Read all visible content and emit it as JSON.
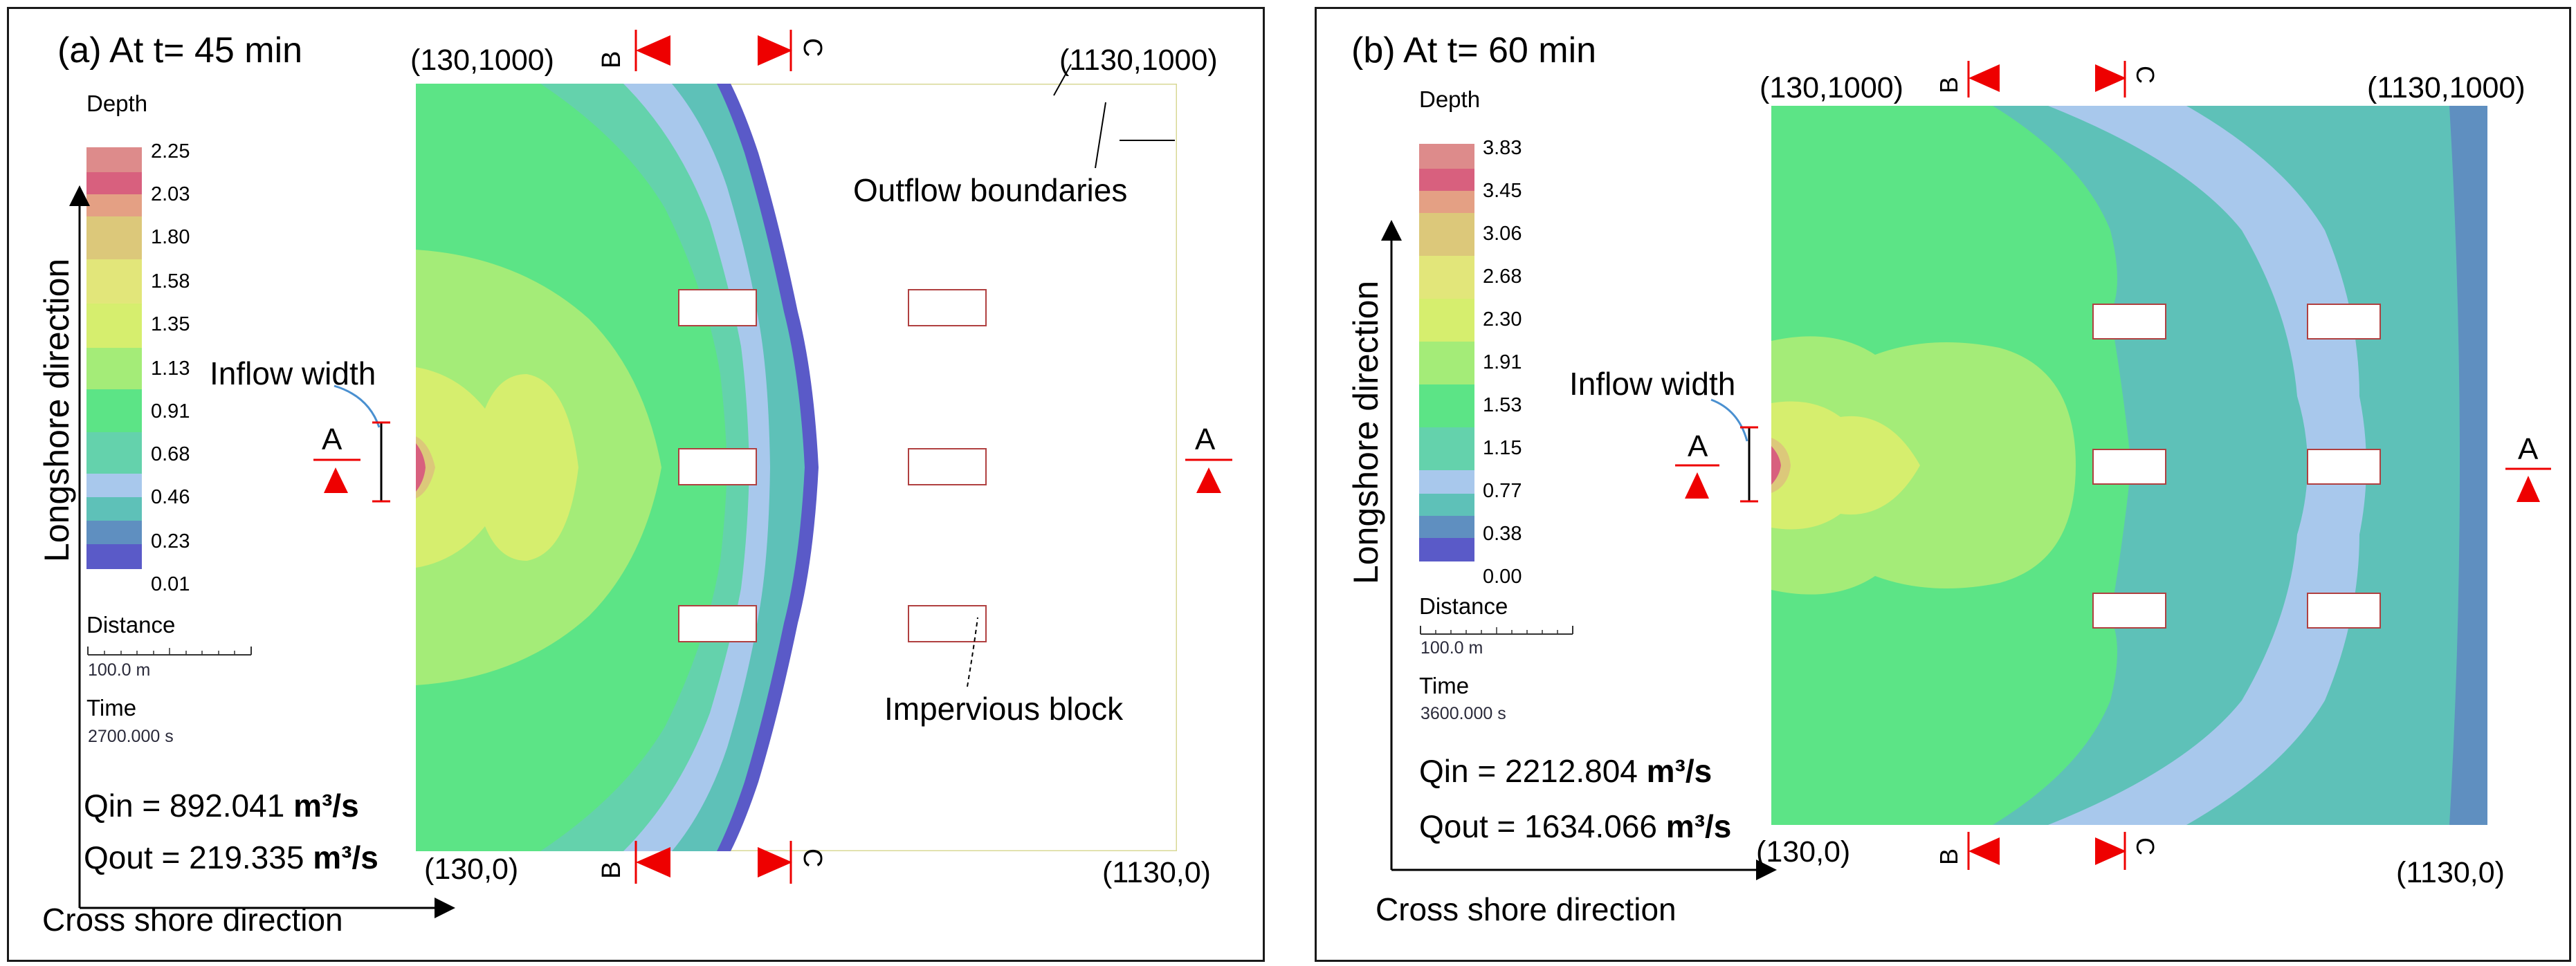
{
  "panel_a": {
    "title": "(a) At t= 45 min",
    "coord_tl": "(130,1000)",
    "coord_tr": "(1130,1000)",
    "coord_bl": "(130,0)",
    "coord_br": "(1130,0)",
    "legend": {
      "title": "Depth",
      "values": [
        "2.25",
        "2.03",
        "1.80",
        "1.58",
        "1.35",
        "1.13",
        "0.91",
        "0.68",
        "0.46",
        "0.23",
        "0.01"
      ],
      "distance_label": "Distance",
      "scale_label": "100.0 m",
      "time_label": "Time",
      "time_value": "2700.000 s"
    },
    "qin_text": "Qin = 892.041",
    "qout_text": "Qout = 219.335",
    "unit": "m³/s",
    "annotations": {
      "inflow_width": "Inflow width",
      "outflow_boundaries": "Outflow boundaries",
      "impervious_block": "Impervious block"
    },
    "section_a": "A",
    "section_b": "B",
    "section_c": "C",
    "longshore": "Longshore direction",
    "cross_shore": "Cross shore direction"
  },
  "panel_b": {
    "title": "(b) At t= 60 min",
    "coord_tl": "(130,1000)",
    "coord_tr": "(1130,1000)",
    "coord_bl": "(130,0)",
    "coord_br": "(1130,0)",
    "legend": {
      "title": "Depth",
      "values": [
        "3.83",
        "3.45",
        "3.06",
        "2.68",
        "2.30",
        "1.91",
        "1.53",
        "1.15",
        "0.77",
        "0.38",
        "0.00"
      ],
      "distance_label": "Distance",
      "scale_label": "100.0 m",
      "time_label": "Time",
      "time_value": "3600.000 s"
    },
    "qin_text": "Qin = 2212.804",
    "qout_text": "Qout = 1634.066",
    "unit": "m³/s",
    "annotations": {
      "inflow_width": "Inflow width"
    },
    "section_a": "A",
    "section_b": "B",
    "section_c": "C",
    "longshore": "Longshore direction",
    "cross_shore": "Cross shore direction"
  },
  "colors": {
    "d0": "#5a5ac8",
    "d1": "#5f8fc0",
    "d2": "#5ec1b8",
    "d3": "#a8c8ec",
    "d4": "#64d2ac",
    "d5": "#5ce486",
    "d6": "#a4ec78",
    "d7": "#d6ee6e",
    "d8": "#dcc87a",
    "d9": "#e4a084",
    "d10": "#d8607e",
    "section_marker": "#ee0000",
    "block_border": "#b04040",
    "domain_border": "#d8d896"
  }
}
